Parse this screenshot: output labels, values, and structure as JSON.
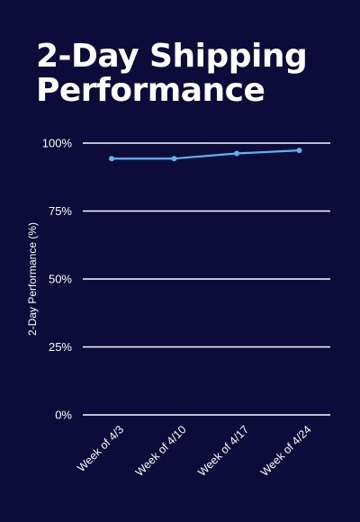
{
  "title_lines": [
    "2-Day Shipping",
    "Performance"
  ],
  "colors": {
    "background": "#0c0b3a",
    "grid": "#ffffff",
    "line": "#5ab4f0",
    "text": "#ffffff"
  },
  "chart_data": {
    "type": "line",
    "title": "2-Day Shipping Performance",
    "ylabel": "2-Day Performance (%)",
    "xlabel": "",
    "categories": [
      "Week of 4/3",
      "Week of 4/10",
      "Week of 4/17",
      "Week of 4/24"
    ],
    "series": [
      {
        "values": [
          94.3,
          94.3,
          96.2,
          97.3
        ]
      }
    ],
    "ylim": [
      0,
      100
    ],
    "yticks": [
      0,
      25,
      50,
      75,
      100
    ],
    "ytick_labels": [
      "0%",
      "25%",
      "50%",
      "75%",
      "100%"
    ],
    "grid": true,
    "legend": "none"
  }
}
